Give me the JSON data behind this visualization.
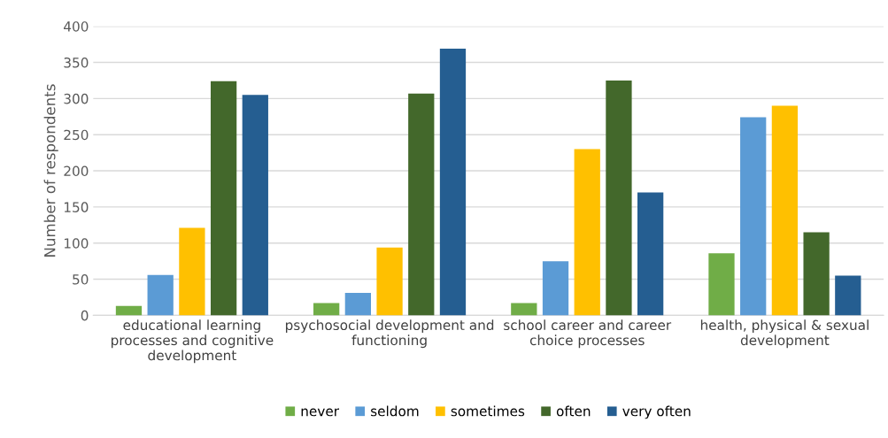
{
  "chart_data": {
    "type": "bar",
    "ylabel": "Number of respondents",
    "categories": [
      "educational learning processes and cognitive development",
      "psychosocial development and functioning",
      "school career and career choice processes",
      "health, physical & sexual development"
    ],
    "series": [
      {
        "name": "never",
        "color": "#70ad47",
        "values": [
          13,
          17,
          17,
          86
        ]
      },
      {
        "name": "seldom",
        "color": "#5b9bd5",
        "values": [
          56,
          31,
          75,
          274
        ]
      },
      {
        "name": "sometimes",
        "color": "#ffc000",
        "values": [
          121,
          94,
          230,
          290
        ]
      },
      {
        "name": "often",
        "color": "#43682b",
        "values": [
          324,
          307,
          325,
          115
        ]
      },
      {
        "name": "very often",
        "color": "#255e91",
        "values": [
          305,
          369,
          170,
          55
        ]
      }
    ],
    "ylim": [
      0,
      400
    ],
    "yticks": [
      0,
      50,
      100,
      150,
      200,
      250,
      300,
      350,
      400
    ],
    "grid": "y",
    "legend": "bottom"
  }
}
